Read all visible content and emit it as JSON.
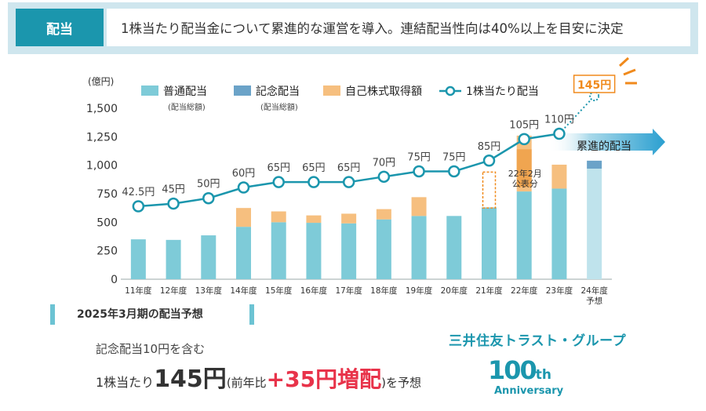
{
  "header": {
    "badge": "配当",
    "text": "1株当たり配当金について累進的な運営を導入。連結配当性向は40%以上を目安に決定"
  },
  "chart_data": {
    "type": "bar",
    "ylabel": "(億円)",
    "ylim": [
      0,
      1500
    ],
    "yticks": [
      0,
      250,
      500,
      750,
      1000,
      1250,
      1500
    ],
    "ytick_labels": [
      "0",
      "250",
      "500",
      "750",
      "1,000",
      "1,250",
      "1,500"
    ],
    "categories": [
      "11年度",
      "12年度",
      "13年度",
      "14年度",
      "15年度",
      "16年度",
      "17年度",
      "18年度",
      "19年度",
      "20年度",
      "21年度",
      "22年度",
      "23年度",
      "24年度"
    ],
    "category_sublabels": [
      "",
      "",
      "",
      "",
      "",
      "",
      "",
      "",
      "",
      "",
      "",
      "",
      "",
      "予想"
    ],
    "legend": [
      {
        "name": "普通配当",
        "sub": "(配当総額)",
        "color": "#7ecbd8"
      },
      {
        "name": "記念配当",
        "sub": "(配当総額)",
        "color": "#6ba3c8"
      },
      {
        "name": "自己株式取得額",
        "sub": "",
        "color": "#f6bf7f"
      },
      {
        "name": "1株当たり配当",
        "sub": "",
        "color": "#1b96ad"
      }
    ],
    "series": [
      {
        "name": "普通配当",
        "values": [
          350,
          345,
          385,
          460,
          500,
          495,
          490,
          525,
          555,
          555,
          630,
          770,
          795,
          970
        ]
      },
      {
        "name": "記念配当",
        "values": [
          0,
          0,
          0,
          0,
          0,
          0,
          0,
          0,
          0,
          0,
          0,
          0,
          0,
          70
        ]
      },
      {
        "name": "自己株式取得額",
        "values": [
          0,
          0,
          0,
          165,
          95,
          65,
          85,
          90,
          165,
          0,
          0,
          490,
          210,
          0
        ]
      }
    ],
    "dps": {
      "values": [
        42.5,
        45,
        50,
        60,
        65,
        65,
        65,
        70,
        75,
        75,
        85,
        105,
        110,
        145
      ],
      "labels": [
        "42.5円",
        "45円",
        "50円",
        "60円",
        "65円",
        "65円",
        "65円",
        "70円",
        "75円",
        "75円",
        "85円",
        "105円",
        "110円",
        "145円"
      ]
    },
    "annotations": {
      "announce": "22年2月\n公表分",
      "progressive": "累進的配当"
    }
  },
  "forecast": {
    "title": "2025年3月期の配当予想",
    "memo": "記念配当10円を含む",
    "prefix": "1株当たり",
    "amount": "145円",
    "paren_open": "(前年比",
    "increase": "+35円増配",
    "paren_close": ")を予想"
  },
  "brand": {
    "company": "三井住友トラスト・グループ",
    "anniv_number": "100",
    "anniv_suffix": "th",
    "anniv_word": "Anniversary"
  },
  "colors": {
    "primary": "#1b96ad",
    "ordinary": "#7ecbd8",
    "commemorative": "#6ba3c8",
    "buyback": "#f6bf7f",
    "highlight": "#f08a1c",
    "red": "#e8334a"
  }
}
